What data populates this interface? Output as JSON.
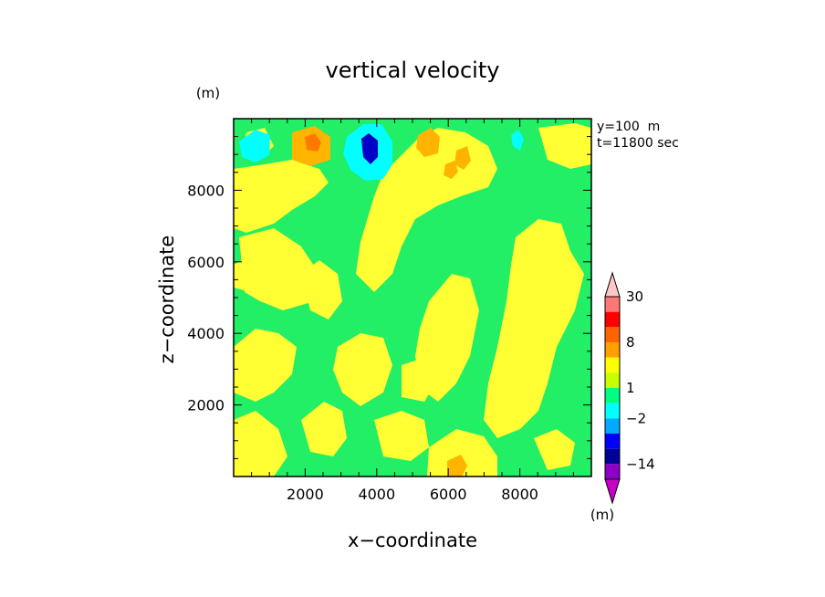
{
  "chart_data": {
    "type": "heatmap",
    "title": "vertical velocity",
    "xlabel": "x−coordinate",
    "ylabel": "z−coordinate",
    "x_unit": "(m)",
    "y_unit": "(m)",
    "xlim": [
      0,
      10000
    ],
    "ylim": [
      0,
      10000
    ],
    "x_ticks": [
      2000,
      4000,
      6000,
      8000
    ],
    "y_ticks": [
      2000,
      4000,
      6000,
      8000
    ],
    "x_tick_labels": [
      "2000",
      "4000",
      "6000",
      "8000"
    ],
    "y_tick_labels": [
      "2000",
      "4000",
      "6000",
      "8000"
    ],
    "annotations": [
      "y=100  m",
      "t=11800 sec"
    ],
    "colorbar": {
      "unit": "(m)",
      "tick_labels": [
        "30",
        "8",
        "1",
        "−2",
        "−14"
      ],
      "levels": [
        -30,
        -14,
        -8,
        -4,
        -2,
        -1,
        0,
        1,
        2,
        4,
        8,
        14,
        30
      ],
      "colors": [
        "#c800c8",
        "#8c00c8",
        "#000096",
        "#0000ff",
        "#00aaff",
        "#00ffff",
        "#00ff80",
        "#c8ff00",
        "#ffff00",
        "#ffa000",
        "#ff6400",
        "#ff0000",
        "#ff7878",
        "#ffc8c8"
      ]
    },
    "field_colors": {
      "background": "#22ee66",
      "weak_positive": "#ffff33",
      "moderate_positive": "#ffb400",
      "strong_positive": "#ff7800",
      "weak_negative": "#00ffff",
      "strong_negative": "#0000c8"
    }
  }
}
